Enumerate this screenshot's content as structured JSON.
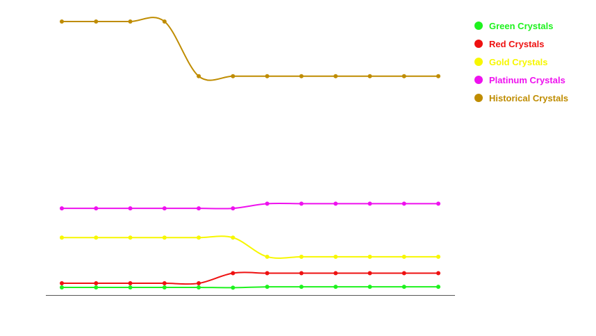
{
  "chart_data": {
    "type": "line",
    "title": "",
    "xlabel": "",
    "ylabel": "",
    "x": [
      1,
      2,
      3,
      4,
      5,
      6,
      7,
      8,
      9,
      10,
      11,
      12
    ],
    "ylim": [
      0,
      100
    ],
    "grid": false,
    "legend_position": "top-right",
    "series": [
      {
        "name": "Green Crystals",
        "color": "#1ef21e",
        "values": [
          2.8,
          2.8,
          2.8,
          2.8,
          2.8,
          2.7,
          3.0,
          3.0,
          3.0,
          3.0,
          3.0,
          3.0
        ]
      },
      {
        "name": "Red Crystals",
        "color": "#ee1111",
        "values": [
          4.3,
          4.3,
          4.3,
          4.3,
          4.3,
          8.0,
          8.0,
          8.0,
          8.0,
          8.0,
          8.0,
          8.0
        ]
      },
      {
        "name": "Gold Crystals",
        "color": "#f7f700",
        "values": [
          21.0,
          21.0,
          21.0,
          21.0,
          21.0,
          21.0,
          14.0,
          14.0,
          14.0,
          14.0,
          14.0,
          14.0
        ]
      },
      {
        "name": "Platinum Crystals",
        "color": "#ee11ee",
        "values": [
          31.7,
          31.7,
          31.7,
          31.7,
          31.7,
          31.7,
          33.4,
          33.4,
          33.4,
          33.4,
          33.4,
          33.4
        ]
      },
      {
        "name": "Historical Crystals",
        "color": "#bf8c00",
        "values": [
          100.0,
          100.0,
          100.0,
          100.0,
          80.0,
          80.0,
          80.0,
          80.0,
          80.0,
          80.0,
          80.0,
          80.0
        ]
      }
    ]
  }
}
